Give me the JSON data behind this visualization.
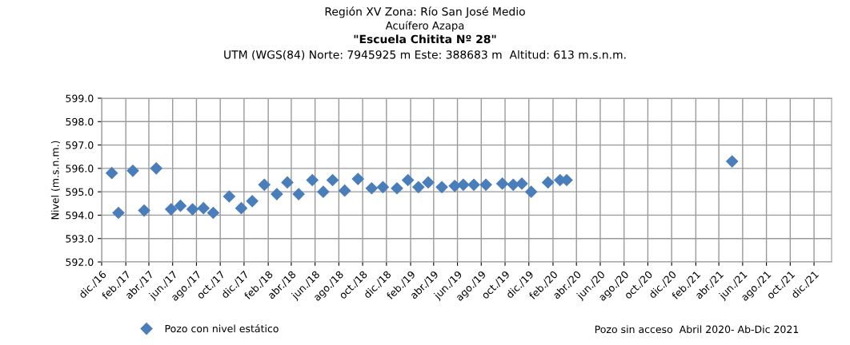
{
  "chart_data": {
    "type": "scatter",
    "title": "Región XV Zona: Río San José Medio",
    "subtitle": "Acuífero Azapa",
    "annotations": [
      "\"Escuela Chitita Nº 28\"",
      "UTM (WGS(84) Norte: 7945925 m Este: 388683 m  Altitud: 613 m.s.n.m.",
      "Pozo sin acceso  Abril 2020- Ab-Dic 2021"
    ],
    "ylabel": "Nivel (m.s.n.m.)",
    "x": [
      "2016-12-27",
      "2017-01-13",
      "2017-02-19",
      "2017-03-20",
      "2017-04-20",
      "2017-05-28",
      "2017-06-21",
      "2017-07-22",
      "2017-08-19",
      "2017-09-13",
      "2017-10-24",
      "2017-11-24",
      "2017-12-22",
      "2018-01-22",
      "2018-02-23",
      "2018-03-22",
      "2018-04-20",
      "2018-05-25",
      "2018-06-22",
      "2018-07-16",
      "2018-08-16",
      "2018-09-19",
      "2018-10-24",
      "2018-11-22",
      "2018-12-28",
      "2019-01-25",
      "2019-02-21",
      "2019-03-18",
      "2019-04-22",
      "2019-05-25",
      "2019-06-16",
      "2019-07-13",
      "2019-08-13",
      "2019-09-24",
      "2019-10-22",
      "2019-11-13",
      "2019-12-07",
      "2020-01-19",
      "2020-02-19",
      "2020-03-07",
      "2021-05-05"
    ],
    "series": [
      {
        "name": "Pozo con nivel estático",
        "color": "#4a7ebb",
        "values": [
          595.8,
          594.1,
          595.9,
          594.2,
          596.0,
          594.25,
          594.4,
          594.25,
          594.3,
          594.1,
          594.8,
          594.3,
          594.6,
          595.3,
          594.9,
          595.4,
          594.9,
          595.5,
          595.0,
          595.5,
          595.05,
          595.55,
          595.15,
          595.2,
          595.15,
          595.5,
          595.2,
          595.4,
          595.2,
          595.25,
          595.3,
          595.3,
          595.3,
          595.35,
          595.3,
          595.35,
          595.0,
          595.4,
          595.5,
          595.5,
          596.3
        ]
      }
    ],
    "marker": "diamond",
    "grid": true,
    "legend": "bottom left",
    "ylim": [
      592,
      599
    ],
    "yticks": [
      {
        "value": 592,
        "label": "592.0"
      },
      {
        "value": 593,
        "label": "593.0"
      },
      {
        "value": 594,
        "label": "594.0"
      },
      {
        "value": 595,
        "label": "595.0"
      },
      {
        "value": 596,
        "label": "596.0"
      },
      {
        "value": 597,
        "label": "597.0"
      },
      {
        "value": 598,
        "label": "598.0"
      },
      {
        "value": 599,
        "label": "599.0"
      }
    ],
    "xlim": [
      "2016-12-01",
      "2022-01-15"
    ],
    "xticks": [
      {
        "value": "2016-12-01",
        "label": "dic./16"
      },
      {
        "value": "2017-02-01",
        "label": "feb./17"
      },
      {
        "value": "2017-04-01",
        "label": "abr./17"
      },
      {
        "value": "2017-06-01",
        "label": "jun./17"
      },
      {
        "value": "2017-08-01",
        "label": "ago./17"
      },
      {
        "value": "2017-10-01",
        "label": "oct./17"
      },
      {
        "value": "2017-12-01",
        "label": "dic./17"
      },
      {
        "value": "2018-02-01",
        "label": "feb./18"
      },
      {
        "value": "2018-04-01",
        "label": "abr./18"
      },
      {
        "value": "2018-06-01",
        "label": "jun./18"
      },
      {
        "value": "2018-08-01",
        "label": "ago./18"
      },
      {
        "value": "2018-10-01",
        "label": "oct./18"
      },
      {
        "value": "2018-12-01",
        "label": "dic./18"
      },
      {
        "value": "2019-02-01",
        "label": "feb./19"
      },
      {
        "value": "2019-04-01",
        "label": "abr./19"
      },
      {
        "value": "2019-06-01",
        "label": "jun./19"
      },
      {
        "value": "2019-08-01",
        "label": "ago./19"
      },
      {
        "value": "2019-10-01",
        "label": "oct./19"
      },
      {
        "value": "2019-12-01",
        "label": "dic./19"
      },
      {
        "value": "2020-02-01",
        "label": "feb./20"
      },
      {
        "value": "2020-04-01",
        "label": "abr./20"
      },
      {
        "value": "2020-06-01",
        "label": "jun./20"
      },
      {
        "value": "2020-08-01",
        "label": "ago./20"
      },
      {
        "value": "2020-10-01",
        "label": "oct./20"
      },
      {
        "value": "2020-12-01",
        "label": "dic./20"
      },
      {
        "value": "2021-02-01",
        "label": "feb./21"
      },
      {
        "value": "2021-04-01",
        "label": "abr./21"
      },
      {
        "value": "2021-06-01",
        "label": "jun./21"
      },
      {
        "value": "2021-08-01",
        "label": "ago./21"
      },
      {
        "value": "2021-10-01",
        "label": "oct./21"
      },
      {
        "value": "2021-12-01",
        "label": "dic./21"
      }
    ]
  }
}
